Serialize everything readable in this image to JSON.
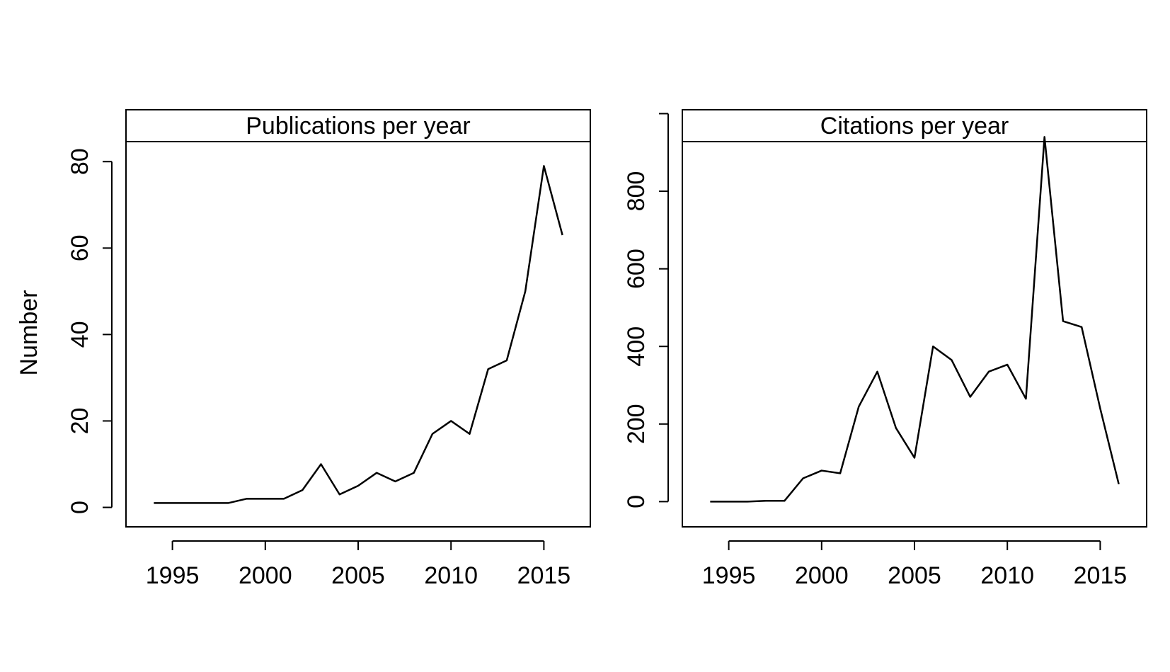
{
  "figure": {
    "ylabel": "Number"
  },
  "chart_data": [
    {
      "type": "line",
      "title": "Publications per year",
      "xlabel": "",
      "ylabel": "Number",
      "xlim": [
        1992.5,
        2017.5
      ],
      "ylim": [
        -4.5,
        92
      ],
      "x_ticks": [
        1995,
        2000,
        2005,
        2010,
        2015
      ],
      "y_ticks": [
        0,
        20,
        40,
        60,
        80
      ],
      "grid": false,
      "series": [
        {
          "x": [
            1994,
            1995,
            1996,
            1997,
            1998,
            1999,
            2000,
            2001,
            2002,
            2003,
            2004,
            2005,
            2006,
            2007,
            2008,
            2009,
            2010,
            2011,
            2012,
            2013,
            2014,
            2015,
            2016
          ],
          "y": [
            1,
            1,
            1,
            1,
            1,
            2,
            2,
            2,
            4,
            10,
            3,
            5,
            8,
            6,
            8,
            17,
            20,
            17,
            32,
            34,
            50,
            79,
            63
          ]
        }
      ]
    },
    {
      "type": "line",
      "title": "Citations per year",
      "xlabel": "",
      "ylabel": "",
      "xlim": [
        1992.5,
        2017.5
      ],
      "ylim": [
        -65,
        1010
      ],
      "x_ticks": [
        1995,
        2000,
        2005,
        2010,
        2015
      ],
      "y_ticks": [
        0,
        200,
        400,
        600,
        800
      ],
      "y_tick_extra": [
        1000
      ],
      "grid": false,
      "series": [
        {
          "x": [
            1994,
            1995,
            1996,
            1997,
            1998,
            1999,
            2000,
            2001,
            2002,
            2003,
            2004,
            2005,
            2006,
            2007,
            2008,
            2009,
            2010,
            2011,
            2012,
            2013,
            2014,
            2015,
            2016
          ],
          "y": [
            0,
            0,
            0,
            2,
            2,
            60,
            80,
            73,
            245,
            335,
            190,
            113,
            400,
            365,
            270,
            335,
            353,
            265,
            940,
            465,
            450,
            240,
            45
          ]
        }
      ]
    }
  ]
}
